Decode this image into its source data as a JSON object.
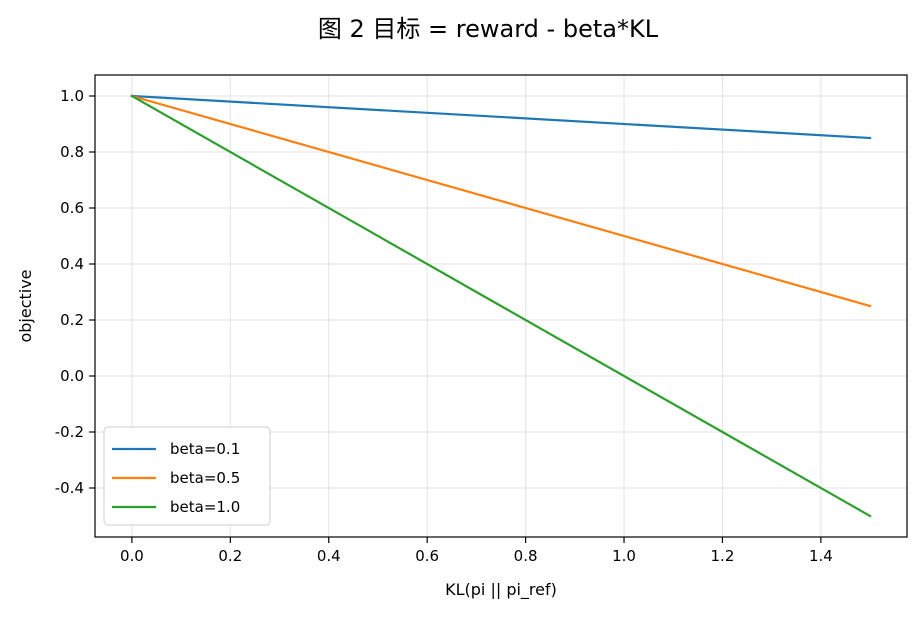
{
  "chart_data": {
    "type": "line",
    "title": "图 2  目标 = reward - beta*KL",
    "xlabel": "KL(pi || pi_ref)",
    "ylabel": "objective",
    "xlim": [
      -0.075,
      1.575
    ],
    "ylim": [
      -0.575,
      1.075
    ],
    "x_ticks": [
      0.0,
      0.2,
      0.4,
      0.6,
      0.8,
      1.0,
      1.2,
      1.4
    ],
    "x_tick_labels": [
      "0.0",
      "0.2",
      "0.4",
      "0.6",
      "0.8",
      "1.0",
      "1.2",
      "1.4"
    ],
    "y_ticks": [
      1.0,
      0.8,
      0.6,
      0.4,
      0.2,
      0.0,
      -0.2,
      -0.4
    ],
    "y_tick_labels": [
      "1.0",
      "0.8",
      "0.6",
      "0.4",
      "0.2",
      "0.0",
      "-0.2",
      "-0.4"
    ],
    "grid": true,
    "legend_position": "lower-left",
    "series": [
      {
        "name": "beta=0.1",
        "color": "#1f77b4",
        "x": [
          0.0,
          1.5
        ],
        "y": [
          1.0,
          0.85
        ]
      },
      {
        "name": "beta=0.5",
        "color": "#ff7f0e",
        "x": [
          0.0,
          1.5
        ],
        "y": [
          1.0,
          0.25
        ]
      },
      {
        "name": "beta=1.0",
        "color": "#2ca02c",
        "x": [
          0.0,
          1.5
        ],
        "y": [
          1.0,
          -0.5
        ]
      }
    ]
  }
}
